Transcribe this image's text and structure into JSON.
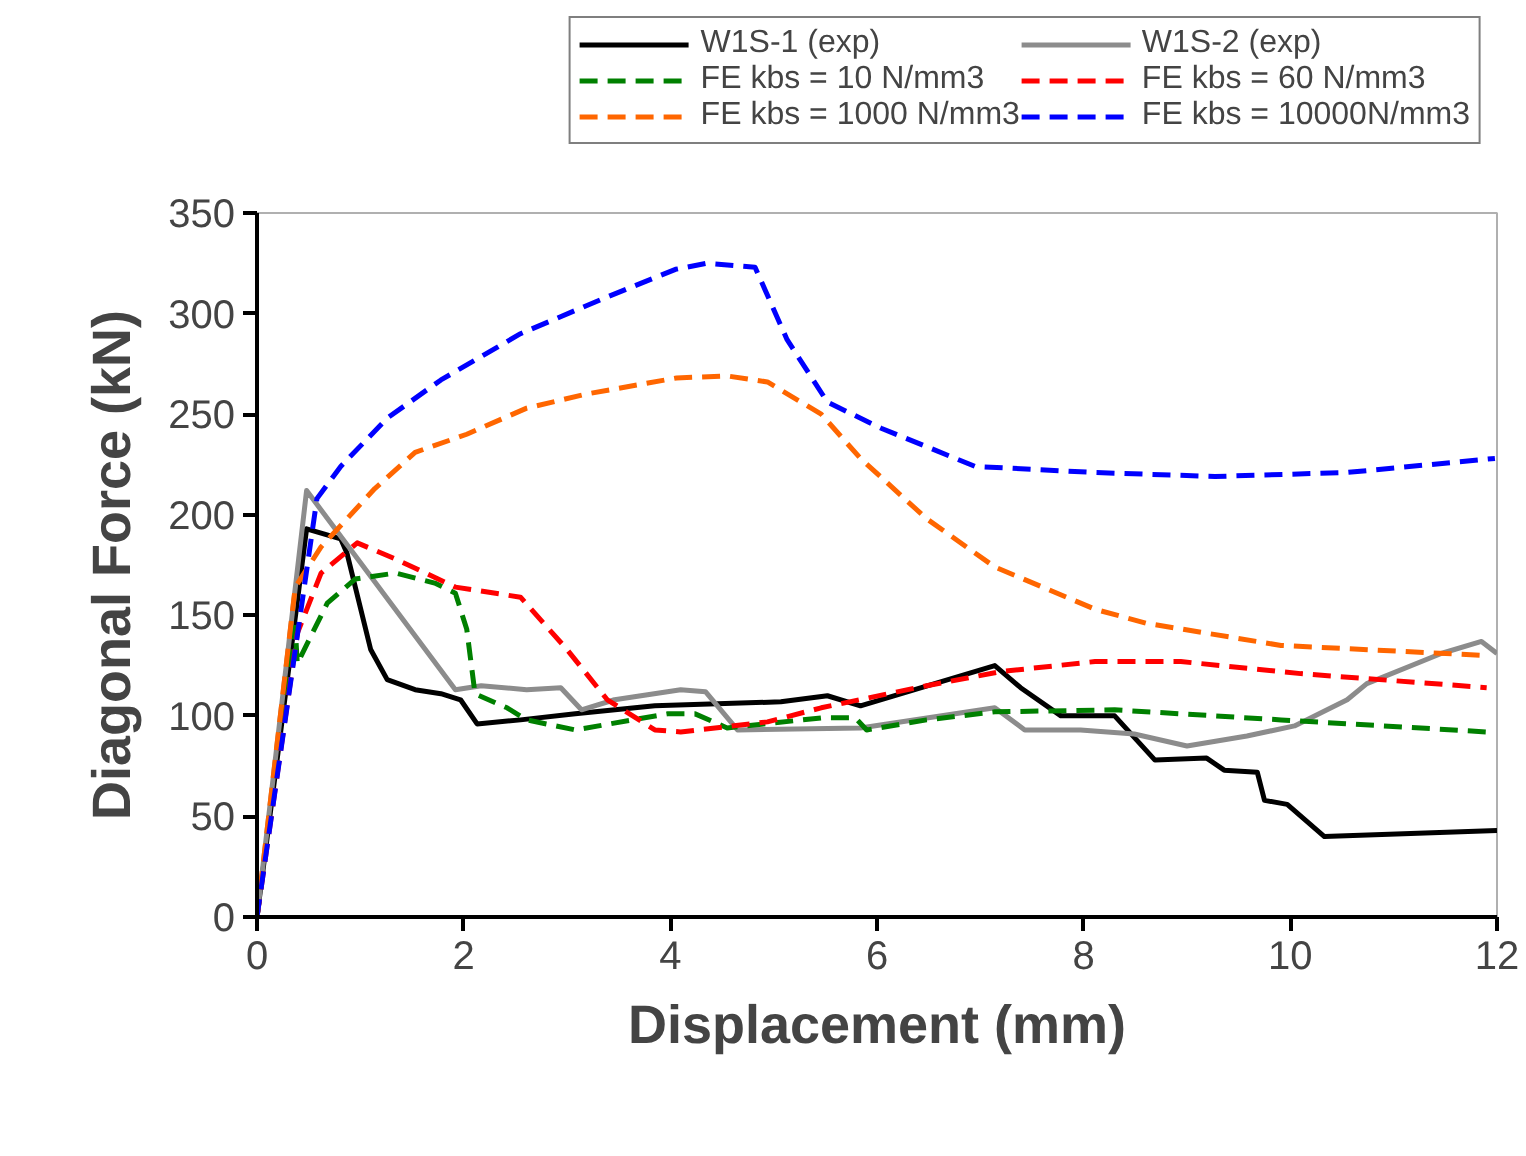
{
  "chart_data": {
    "type": "line",
    "xlabel": "Displacement (mm)",
    "ylabel": "Diagonal Force (kN)",
    "xlim": [
      0,
      12
    ],
    "ylim": [
      0,
      350
    ],
    "xticks": [
      0,
      2,
      4,
      6,
      8,
      10,
      12
    ],
    "yticks": [
      0,
      50,
      100,
      150,
      200,
      250,
      300,
      350
    ],
    "grid": false,
    "legend": "top",
    "marker": "none",
    "series": [
      {
        "name": "W1S-1 (exp)",
        "color": "#000000",
        "line_style": "solid",
        "x": [
          0,
          0.48,
          0.81,
          0.87,
          1.1,
          1.26,
          1.53,
          1.78,
          1.97,
          2.13,
          2.55,
          3.08,
          3.85,
          5.07,
          5.52,
          5.84,
          7.14,
          7.39,
          7.78,
          8.3,
          8.69,
          9.19,
          9.36,
          9.68,
          9.75,
          9.97,
          10.33,
          12
        ],
        "values": [
          0,
          193,
          188,
          181,
          133,
          118,
          113,
          111,
          108,
          96,
          98,
          101,
          105,
          107,
          110,
          105,
          125,
          114,
          100,
          100,
          78,
          79,
          73,
          72,
          58,
          56,
          40,
          43
        ]
      },
      {
        "name": "W1S-2 (exp)",
        "color": "#8c8c8c",
        "line_style": "solid",
        "x": [
          0,
          0.48,
          1.92,
          2.17,
          2.61,
          2.94,
          3.14,
          3.46,
          4.1,
          4.34,
          4.65,
          5.84,
          7.14,
          7.43,
          7.97,
          8.49,
          9.0,
          9.58,
          10.04,
          10.55,
          10.74,
          11.46,
          11.85,
          12
        ],
        "values": [
          0,
          212,
          113,
          115,
          113,
          114,
          103,
          108,
          113,
          112,
          93,
          94,
          104,
          93,
          93,
          91,
          85,
          90,
          95,
          108,
          116,
          131,
          137,
          131
        ]
      },
      {
        "name": "FE kbs = 10 N/mm3",
        "color": "#008000",
        "line_style": "dashed",
        "x": [
          0,
          0.37,
          0.39,
          0.68,
          0.95,
          1.34,
          1.72,
          1.92,
          2.03,
          2.11,
          2.42,
          2.61,
          3.08,
          3.97,
          4.24,
          4.55,
          5.46,
          5.79,
          5.9,
          6.48,
          7.14,
          8.3,
          9.91,
          11.9
        ],
        "values": [
          0,
          144,
          126,
          156,
          168,
          171,
          166,
          161,
          143,
          111,
          104,
          98,
          93,
          101,
          101,
          94,
          99,
          99,
          93,
          98,
          102,
          103,
          98,
          92
        ]
      },
      {
        "name": "FE kbs = 60 N/mm3",
        "color": "#ff0000",
        "line_style": "dashed",
        "x": [
          0,
          0.39,
          0.62,
          0.97,
          1.34,
          1.92,
          2.55,
          3.0,
          3.39,
          3.85,
          4.1,
          4.94,
          5.46,
          6.48,
          7.2,
          8.11,
          8.94,
          10.1,
          11.9
        ],
        "values": [
          0,
          141,
          171,
          186,
          178,
          164,
          159,
          133,
          108,
          93,
          92,
          97,
          104,
          115,
          122,
          127,
          127,
          121,
          114
        ]
      },
      {
        "name": "FE kbs = 1000 N/mm3",
        "color": "#ff6600",
        "line_style": "dashed",
        "x": [
          0,
          0.37,
          0.62,
          1.14,
          1.53,
          2.03,
          2.61,
          3.19,
          4.06,
          4.55,
          4.94,
          5.46,
          5.84,
          6.48,
          7.14,
          8.11,
          8.61,
          9.91,
          11.9
        ],
        "values": [
          0,
          164,
          184,
          213,
          231,
          240,
          253,
          260,
          268,
          269,
          266,
          250,
          228,
          198,
          174,
          153,
          146,
          135,
          130
        ]
      },
      {
        "name": "FE kbs = 10000N/mm3",
        "color": "#0000ff",
        "line_style": "dashed",
        "x": [
          0,
          0.58,
          0.81,
          1.26,
          1.78,
          2.55,
          3.33,
          4.05,
          4.35,
          4.82,
          5.13,
          5.52,
          6.04,
          6.95,
          8.11,
          9.27,
          10.55,
          11.98
        ],
        "values": [
          0,
          208,
          224,
          248,
          267,
          290,
          307,
          322,
          325,
          323,
          287,
          256,
          243,
          224,
          221,
          219,
          221,
          228
        ]
      }
    ]
  }
}
